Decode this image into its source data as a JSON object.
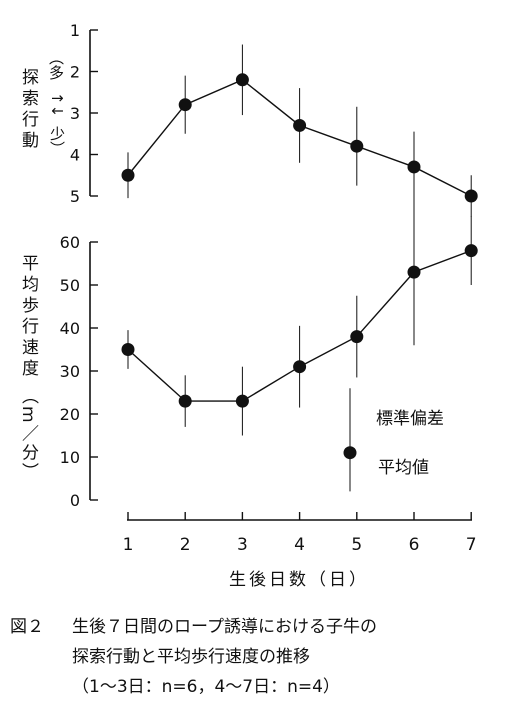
{
  "chart_data": [
    {
      "type": "line",
      "ylabel": "探索行動（多↔少）",
      "ylabel_parts": [
        "探索行動",
        "（多",
        "↑↓",
        "少）"
      ],
      "ylim": [
        1,
        5
      ],
      "y_inverted": true,
      "y_ticks": [
        "1",
        "2",
        "3",
        "4",
        "5"
      ],
      "x": [
        1,
        2,
        3,
        4,
        5,
        6,
        7
      ],
      "values": [
        4.5,
        2.8,
        2.2,
        3.3,
        3.8,
        4.3,
        5.0
      ],
      "sd": [
        0.55,
        0.7,
        0.85,
        0.9,
        0.95,
        0.85,
        0.5
      ],
      "grid": false
    },
    {
      "type": "line",
      "ylabel": "平均歩行速度（m／分）",
      "ylabel_parts": [
        "平均歩行速度",
        "（m／分）"
      ],
      "ylim": [
        0,
        60
      ],
      "y_ticks": [
        "0",
        "10",
        "20",
        "30",
        "40",
        "50",
        "60"
      ],
      "x": [
        1,
        2,
        3,
        4,
        5,
        6,
        7
      ],
      "values": [
        35,
        23,
        23,
        31,
        38,
        53,
        58
      ],
      "sd": [
        4.5,
        6,
        8,
        9.5,
        9.5,
        17,
        8
      ],
      "grid": false,
      "legend": {
        "items": [
          "標準偏差",
          "平均値"
        ],
        "placement": "inside-lower-right",
        "sample_value": 11,
        "sample_sd": 9
      }
    }
  ],
  "x_axis": {
    "ticks": [
      "1",
      "2",
      "3",
      "4",
      "5",
      "6",
      "7"
    ],
    "label": "生後日数（日）"
  },
  "caption": {
    "figure_no": "図２",
    "line1": "生後７日間のロープ誘導における子牛の",
    "line2": "探索行動と平均歩行速度の推移",
    "line3": "（1～3日：n=6，4～7日：n=4）"
  },
  "colors": {
    "ink": "#111111",
    "background": "#ffffff"
  }
}
